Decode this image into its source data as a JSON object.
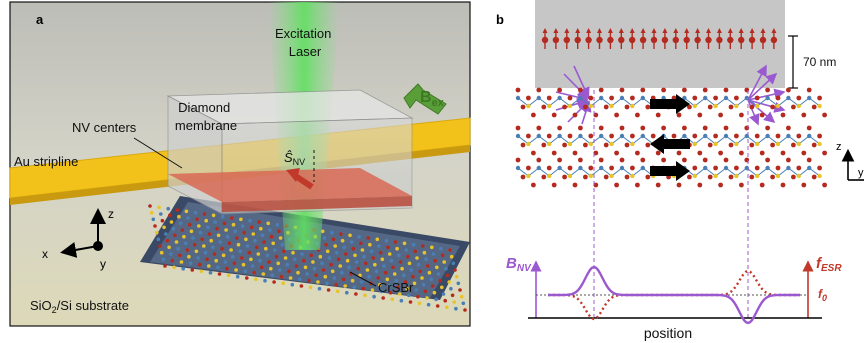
{
  "panel_a": {
    "label": "a",
    "excitation_laser": "Excitation\nLaser",
    "b_ex": {
      "symbol": "B",
      "sub": "ex"
    },
    "diamond_membrane": "Diamond\nmembrane",
    "nv_centers": "NV centers",
    "s_nv": {
      "symbol": "Ŝ",
      "sub": "NV"
    },
    "au_stripline": "Au stripline",
    "axes": {
      "z": "z",
      "x": "x",
      "y": "y"
    },
    "crsbr": "CrSBr",
    "substrate": {
      "pre": "SiO",
      "sub": "2",
      "post": "/Si substrate"
    }
  },
  "panel_b": {
    "label": "b",
    "thickness": "70 nm",
    "axes": {
      "z": "z",
      "y": "y"
    },
    "b_nv": {
      "symbol": "B",
      "sub": "NV"
    },
    "f_esr": {
      "symbol": "f",
      "sub": "ESR"
    },
    "f0": {
      "symbol": "f",
      "sub": "0"
    },
    "position": "position"
  },
  "colors": {
    "purple": "#9b59d0",
    "red": "#c0392b",
    "green": "#4caf50",
    "gold": "#f2c21b",
    "layer_blue": "#4a7fb5",
    "layer_red": "#b52a1f",
    "layer_yellow": "#e6c42a"
  }
}
